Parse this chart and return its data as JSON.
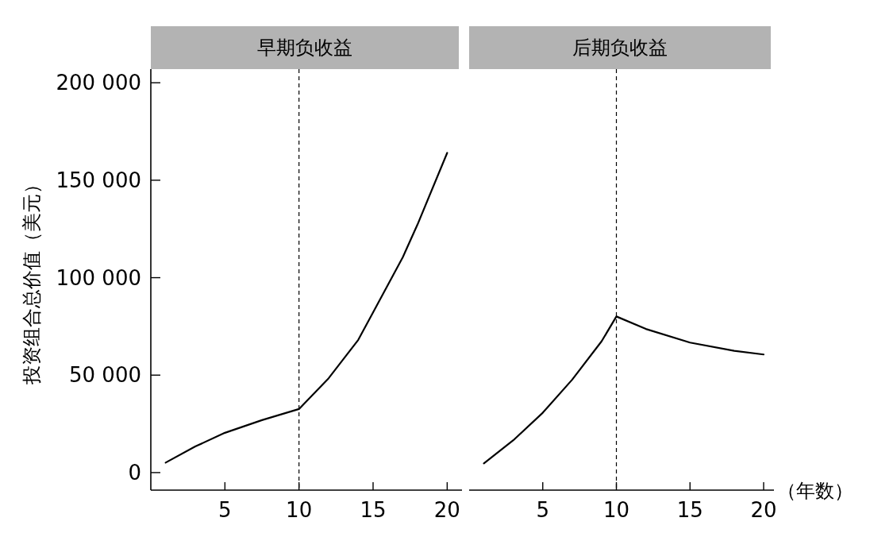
{
  "chart_data": [
    {
      "type": "line",
      "title": "早期负收益",
      "ylabel": "投资组合总价值（美元）",
      "xlim": [
        0,
        21
      ],
      "ylim": [
        -9000,
        207000
      ],
      "xticks": [
        5,
        10,
        15,
        20
      ],
      "yticks": [
        {
          "value": 0,
          "label": "0"
        },
        {
          "value": 50000,
          "label": "50 000"
        },
        {
          "value": 100000,
          "label": "100 000"
        },
        {
          "value": 150000,
          "label": "150 000"
        },
        {
          "value": 200000,
          "label": "200 000"
        }
      ],
      "grid": false,
      "marker": "none",
      "line_style": "solid",
      "series": [
        {
          "color": "#000000",
          "x": [
            1,
            3,
            5,
            7.5,
            10,
            12,
            14,
            15,
            17,
            18,
            20
          ],
          "values": [
            5100,
            13400,
            20400,
            26900,
            32600,
            48400,
            68100,
            82200,
            110400,
            127300,
            164000
          ]
        }
      ],
      "ref_lines": [
        {
          "axis": "x",
          "value": 10,
          "color": "#000000",
          "line_style": "dashed"
        }
      ]
    },
    {
      "type": "line",
      "title": "后期负收益",
      "xlabel": "（年数）",
      "xlim": [
        0,
        20.7
      ],
      "ylim": [
        -9000,
        207000
      ],
      "xticks": [
        5,
        10,
        15,
        20
      ],
      "tick_labels": "x",
      "grid": false,
      "marker": "none",
      "line_style": "solid",
      "series": [
        {
          "color": "#000000",
          "x": [
            1,
            3,
            5,
            7,
            9,
            10,
            12,
            15,
            18,
            20
          ],
          "values": [
            4700,
            16600,
            30700,
            47700,
            67400,
            80100,
            73700,
            66700,
            62500,
            60600
          ]
        }
      ],
      "ref_lines": [
        {
          "axis": "x",
          "value": 10,
          "color": "#000000",
          "line_style": "dashed"
        }
      ]
    }
  ]
}
